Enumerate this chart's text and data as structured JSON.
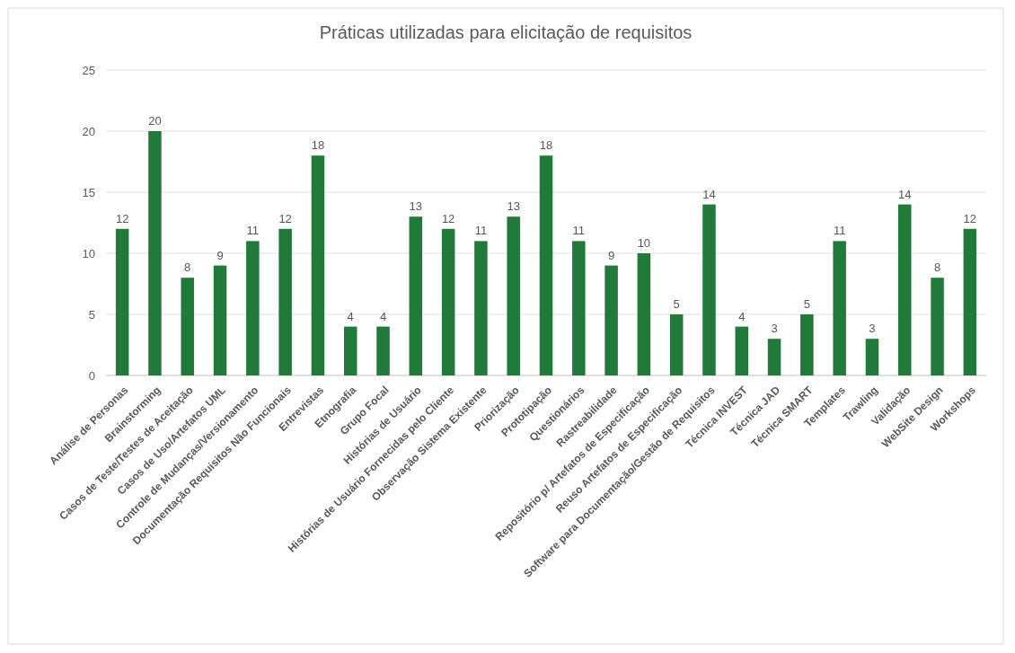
{
  "chart_data": {
    "type": "bar",
    "title": "Práticas utilizadas para elicitação de requisitos",
    "categories": [
      "Análise de Personas",
      "Brainstorming",
      "Casos de Teste/Testes de Aceitação",
      "Casos de Uso/Artefatos UML",
      "Controle de Mudanças/Versionamento",
      "Documentação Requisitos Não Funcionais",
      "Entrevistas",
      "Etnografia",
      "Grupo Focal",
      "Histórias de Usuário",
      "Histórias de Usuário Fornecidas pelo Cliente",
      "Observação Sistema Existente",
      "Priorização",
      "Prototipação",
      "Questionários",
      "Rastreabilidade",
      "Repositório p/ Artefatos de Especificação",
      "Reuso Artefatos de Especificação",
      "Software para Documentação/Gestão de Requisitos",
      "Técnica INVEST",
      "Técnica JAD",
      "Técnica SMART",
      "Templates",
      "Trawling",
      "Validação",
      "WebSite Design",
      "Workshops"
    ],
    "values": [
      12,
      20,
      8,
      9,
      11,
      12,
      18,
      4,
      4,
      13,
      12,
      11,
      13,
      18,
      11,
      9,
      10,
      5,
      14,
      4,
      3,
      5,
      11,
      3,
      14,
      8,
      12
    ],
    "color": "#217a3a",
    "ylim": [
      0,
      25
    ],
    "yticks": [
      0,
      5,
      10,
      15,
      20,
      25
    ],
    "grid": "y",
    "data_labels": true
  }
}
